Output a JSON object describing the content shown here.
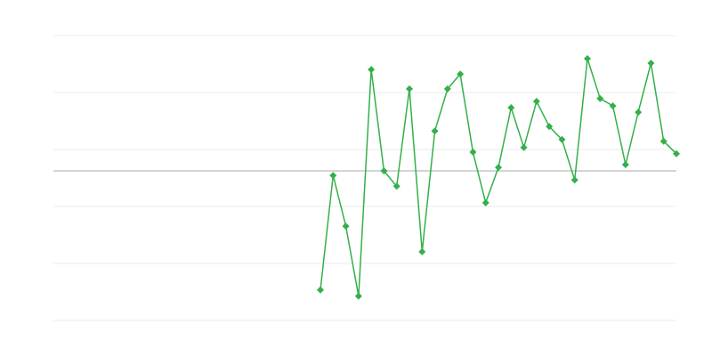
{
  "chart_data": {
    "type": "line",
    "title": "",
    "xlabel": "",
    "ylabel": "",
    "x": [
      1,
      2,
      3,
      4,
      5,
      6,
      7,
      8,
      9,
      10,
      11,
      12,
      13,
      14,
      15,
      16,
      17,
      18,
      19,
      20,
      21,
      22,
      23,
      24,
      25,
      26,
      27,
      28,
      29,
      30,
      31,
      32,
      33,
      34,
      35,
      36,
      37,
      38,
      39,
      40,
      41,
      42,
      43,
      44,
      45,
      46,
      47,
      48,
      49,
      50
    ],
    "series": [
      {
        "values": [
          null,
          null,
          null,
          null,
          null,
          null,
          null,
          null,
          null,
          null,
          null,
          null,
          null,
          null,
          null,
          null,
          null,
          null,
          null,
          null,
          null,
          -2.09,
          -0.08,
          -0.97,
          -2.2,
          1.78,
          0,
          -0.27,
          1.44,
          -1.42,
          0.7,
          1.44,
          1.7,
          0.33,
          -0.56,
          0.06,
          1.11,
          0.41,
          1.22,
          0.78,
          0.55,
          -0.16,
          1.97,
          1.27,
          1.14,
          0.11,
          1.03,
          1.89,
          0.52,
          0.3
        ],
        "color": "#33b04a",
        "marker": "diamond"
      }
    ],
    "xlim": [
      1,
      50
    ],
    "ylim": [
      -2.625,
      2.375
    ],
    "yticks": [
      -2.625,
      -1.625,
      -0.625,
      0.375,
      1.375,
      2.375
    ],
    "baseline": 0,
    "grid": true,
    "legend": "none",
    "colors": {
      "grid": "#ebebeb",
      "baseline": "#aaaaaa"
    }
  }
}
